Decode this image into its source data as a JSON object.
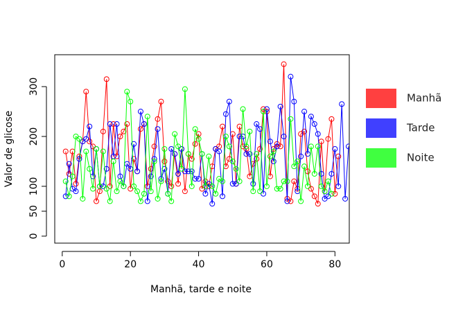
{
  "chart_data": {
    "type": "line",
    "x_label": "Manhã, tarde e noite",
    "y_label": "Valor de glicose",
    "x": [
      1,
      2,
      3,
      4,
      5,
      6,
      7,
      8,
      9,
      10,
      11,
      12,
      13,
      14,
      15,
      16,
      17,
      18,
      19,
      20,
      21,
      22,
      23,
      24,
      25,
      26,
      27,
      28,
      29,
      30,
      31,
      32,
      33,
      34,
      35,
      36,
      37,
      38,
      39,
      40,
      41,
      42,
      43,
      44,
      45,
      46,
      47,
      48,
      49,
      50,
      51,
      52,
      53,
      54,
      55,
      56,
      57,
      58,
      59,
      60,
      61,
      62,
      63,
      64,
      65,
      66,
      67,
      68,
      69,
      70,
      71,
      72,
      73,
      74,
      75,
      76,
      77,
      78,
      79,
      80,
      81,
      82,
      83,
      84
    ],
    "xlim": [
      -2.2,
      84.2
    ],
    "ylim": [
      -14,
      364
    ],
    "xticks": [
      0,
      20,
      40,
      60,
      80
    ],
    "yticks": [
      0,
      50,
      100,
      200,
      300
    ],
    "series": [
      {
        "name": "Manhã",
        "color": "#ff0000",
        "values": [
          170,
          125,
          170,
          105,
          160,
          190,
          290,
          190,
          180,
          70,
          90,
          210,
          315,
          100,
          225,
          160,
          200,
          210,
          225,
          95,
          155,
          130,
          215,
          225,
          100,
          135,
          180,
          235,
          270,
          150,
          110,
          100,
          165,
          105,
          175,
          90,
          165,
          155,
          185,
          205,
          95,
          110,
          100,
          140,
          175,
          180,
          220,
          140,
          155,
          205,
          105,
          220,
          180,
          175,
          120,
          145,
          155,
          175,
          255,
          250,
          120,
          175,
          185,
          180,
          345,
          75,
          70,
          110,
          95,
          205,
          210,
          130,
          95,
          80,
          65,
          190,
          90,
          195,
          235,
          85,
          160,
          null,
          null,
          null
        ]
      },
      {
        "name": "Tarde",
        "color": "#0000ff",
        "values": [
          80,
          145,
          95,
          90,
          155,
          190,
          195,
          220,
          120,
          175,
          100,
          100,
          135,
          225,
          160,
          225,
          120,
          100,
          145,
          135,
          185,
          130,
          250,
          225,
          70,
          120,
          155,
          215,
          115,
          135,
          85,
          175,
          165,
          125,
          175,
          130,
          130,
          130,
          115,
          115,
          165,
          85,
          105,
          65,
          175,
          170,
          80,
          245,
          270,
          105,
          105,
          200,
          200,
          165,
          165,
          105,
          225,
          215,
          85,
          255,
          190,
          150,
          180,
          260,
          200,
          70,
          320,
          270,
          90,
          160,
          250,
          165,
          240,
          225,
          205,
          125,
          75,
          80,
          125,
          175,
          100,
          265,
          75,
          180
        ]
      },
      {
        "name": "Noite",
        "color": "#00ff00",
        "values": [
          110,
          80,
          120,
          200,
          195,
          75,
          170,
          135,
          95,
          175,
          100,
          170,
          95,
          70,
          150,
          90,
          110,
          100,
          290,
          270,
          100,
          90,
          70,
          85,
          240,
          90,
          150,
          75,
          110,
          175,
          85,
          70,
          205,
          180,
          135,
          295,
          165,
          100,
          215,
          195,
          165,
          100,
          160,
          100,
          85,
          115,
          110,
          200,
          180,
          150,
          135,
          110,
          255,
          180,
          210,
          90,
          165,
          90,
          250,
          100,
          160,
          170,
          95,
          95,
          110,
          110,
          235,
          140,
          150,
          70,
          140,
          100,
          180,
          125,
          180,
          100,
          90,
          110,
          85,
          null,
          null,
          null,
          null,
          null
        ]
      }
    ]
  }
}
